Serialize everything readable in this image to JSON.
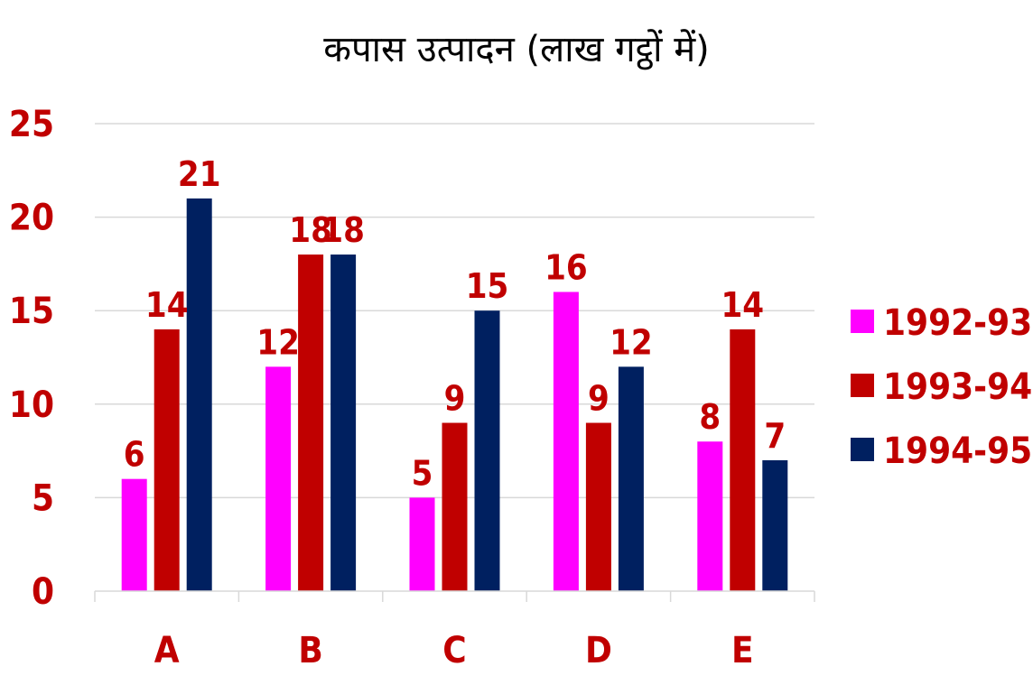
{
  "chart_data": {
    "type": "bar",
    "title": "कपास उत्पादन (लाख गट्ठों में)",
    "categories": [
      "A",
      "B",
      "C",
      "D",
      "E"
    ],
    "series": [
      {
        "name": "1992-93",
        "values": [
          6,
          12,
          5,
          16,
          8
        ],
        "color": "#ff00ff"
      },
      {
        "name": "1993-94",
        "values": [
          14,
          18,
          9,
          9,
          14
        ],
        "color": "#c00000"
      },
      {
        "name": "1994-95",
        "values": [
          21,
          18,
          15,
          12,
          7
        ],
        "color": "#002060"
      }
    ],
    "ylim": [
      0,
      25
    ],
    "yticks": [
      0,
      5,
      10,
      15,
      20,
      25
    ],
    "grid": true,
    "legend_position": "right",
    "label_color": "#c00000",
    "xlabel": "",
    "ylabel": ""
  }
}
